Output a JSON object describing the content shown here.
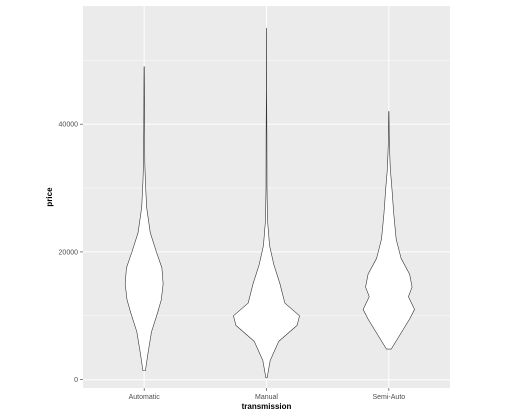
{
  "chart_data": {
    "type": "violin",
    "title": "",
    "xlabel": "transmission",
    "ylabel": "price",
    "categories": [
      "Automatic",
      "Manual",
      "Semi-Auto"
    ],
    "ylim": [
      -1300,
      58500
    ],
    "yticks": [
      0,
      20000,
      40000
    ],
    "ytick_labels": [
      "0",
      "20000",
      "40000"
    ],
    "grid": true,
    "legend": "none",
    "colors": {
      "panel": "#ebebeb",
      "grid": "#ffffff",
      "fill": "#ffffff",
      "outline": "#333333"
    },
    "series": [
      {
        "category": "Automatic",
        "density_profile": [
          {
            "price": 1400,
            "half_width": 0.01
          },
          {
            "price": 4000,
            "half_width": 0.03
          },
          {
            "price": 7500,
            "half_width": 0.06
          },
          {
            "price": 10500,
            "half_width": 0.11
          },
          {
            "price": 12500,
            "half_width": 0.14
          },
          {
            "price": 15000,
            "half_width": 0.155
          },
          {
            "price": 17500,
            "half_width": 0.145
          },
          {
            "price": 20000,
            "half_width": 0.1
          },
          {
            "price": 23000,
            "half_width": 0.05
          },
          {
            "price": 27000,
            "half_width": 0.02
          },
          {
            "price": 31000,
            "half_width": 0.01
          },
          {
            "price": 34000,
            "half_width": 0.005
          },
          {
            "price": 40000,
            "half_width": 0.003
          },
          {
            "price": 46000,
            "half_width": 0.002
          },
          {
            "price": 49000,
            "half_width": 0.001
          }
        ]
      },
      {
        "category": "Manual",
        "density_profile": [
          {
            "price": 300,
            "half_width": 0.005
          },
          {
            "price": 3000,
            "half_width": 0.03
          },
          {
            "price": 6000,
            "half_width": 0.1
          },
          {
            "price": 8500,
            "half_width": 0.25
          },
          {
            "price": 10000,
            "half_width": 0.27
          },
          {
            "price": 12000,
            "half_width": 0.15
          },
          {
            "price": 15000,
            "half_width": 0.11
          },
          {
            "price": 18000,
            "half_width": 0.06
          },
          {
            "price": 21000,
            "half_width": 0.025
          },
          {
            "price": 25000,
            "half_width": 0.008
          },
          {
            "price": 30000,
            "half_width": 0.004
          },
          {
            "price": 38000,
            "half_width": 0.003
          },
          {
            "price": 45000,
            "half_width": 0.001
          },
          {
            "price": 55000,
            "half_width": 0.0005
          }
        ]
      },
      {
        "category": "Semi-Auto",
        "density_profile": [
          {
            "price": 4800,
            "half_width": 0.02
          },
          {
            "price": 7000,
            "half_width": 0.09
          },
          {
            "price": 9500,
            "half_width": 0.17
          },
          {
            "price": 11000,
            "half_width": 0.21
          },
          {
            "price": 13000,
            "half_width": 0.16
          },
          {
            "price": 14500,
            "half_width": 0.19
          },
          {
            "price": 16500,
            "half_width": 0.17
          },
          {
            "price": 19000,
            "half_width": 0.1
          },
          {
            "price": 22000,
            "half_width": 0.06
          },
          {
            "price": 26000,
            "half_width": 0.04
          },
          {
            "price": 30000,
            "half_width": 0.025
          },
          {
            "price": 33000,
            "half_width": 0.012
          },
          {
            "price": 37000,
            "half_width": 0.004
          },
          {
            "price": 42000,
            "half_width": 0.001
          }
        ]
      }
    ]
  }
}
